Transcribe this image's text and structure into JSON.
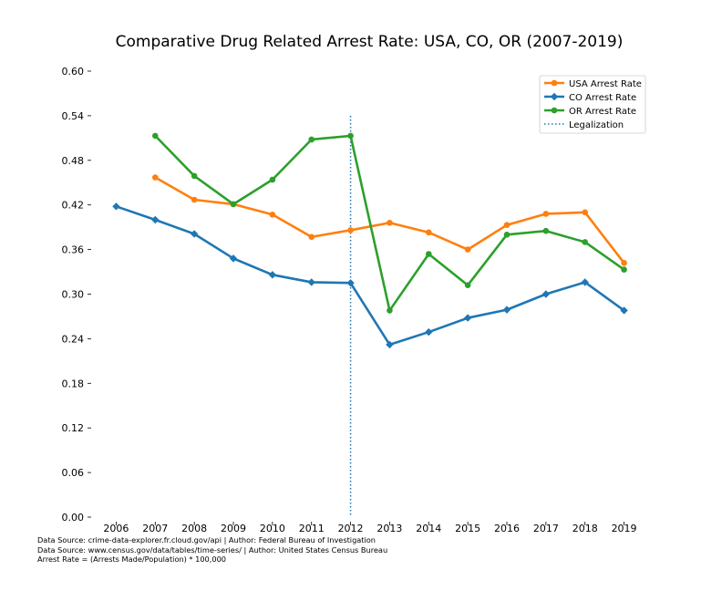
{
  "chart_data": {
    "type": "line",
    "title": "Comparative Drug Related Arrest Rate: USA, CO, OR (2007-2019)",
    "xlabel": "",
    "ylabel": "",
    "x": [
      2006,
      2007,
      2008,
      2009,
      2010,
      2011,
      2012,
      2013,
      2014,
      2015,
      2016,
      2017,
      2018,
      2019
    ],
    "x_ticks": [
      "2006",
      "2007",
      "2008",
      "2009",
      "2010",
      "2011",
      "2012",
      "2013",
      "2014",
      "2015",
      "2016",
      "2017",
      "2018",
      "2019"
    ],
    "xlim": [
      2005.5,
      2019.5
    ],
    "ylim": [
      0,
      0.6
    ],
    "y_ticks": [
      "0.00",
      "0.06",
      "0.12",
      "0.18",
      "0.24",
      "0.30",
      "0.36",
      "0.42",
      "0.48",
      "0.54",
      "0.60"
    ],
    "y_tick_values": [
      0,
      0.06,
      0.12,
      0.18,
      0.24,
      0.3,
      0.36,
      0.42,
      0.48,
      0.54,
      0.6
    ],
    "grid": false,
    "legend_position": "top-right",
    "series": [
      {
        "name": "USA Arrest Rate",
        "color": "#ff7f0e",
        "marker": "circle",
        "x": [
          2007,
          2008,
          2009,
          2010,
          2011,
          2012,
          2013,
          2014,
          2015,
          2016,
          2017,
          2018,
          2019
        ],
        "values": [
          0.457,
          0.427,
          0.421,
          0.407,
          0.377,
          0.386,
          0.396,
          0.383,
          0.36,
          0.393,
          0.408,
          0.41,
          0.342
        ]
      },
      {
        "name": "CO Arrest Rate",
        "color": "#1f77b4",
        "marker": "diamond",
        "x": [
          2006,
          2007,
          2008,
          2009,
          2010,
          2011,
          2012,
          2013,
          2014,
          2015,
          2016,
          2017,
          2018,
          2019
        ],
        "values": [
          0.418,
          0.4,
          0.381,
          0.348,
          0.326,
          0.316,
          0.315,
          0.232,
          0.249,
          0.268,
          0.279,
          0.3,
          0.316,
          0.278
        ]
      },
      {
        "name": "OR Arrest Rate",
        "color": "#2ca02c",
        "marker": "circle",
        "x": [
          2007,
          2008,
          2009,
          2010,
          2011,
          2012,
          2013,
          2014,
          2015,
          2016,
          2017,
          2018,
          2019
        ],
        "values": [
          0.513,
          0.459,
          0.421,
          0.454,
          0.508,
          0.513,
          0.278,
          0.354,
          0.312,
          0.38,
          0.385,
          0.37,
          0.333
        ]
      }
    ],
    "annotations": [
      {
        "type": "vline",
        "x": 2012,
        "name": "Legalization",
        "color": "#1f77b4",
        "style": "dotted"
      }
    ]
  },
  "footnotes": [
    "Data Source: crime-data-explorer.fr.cloud.gov/api | Author: Federal Bureau of Investigation",
    "Data Source: www.census.gov/data/tables/time-series/ | Author: United States Census Bureau",
    "Arrest Rate = (Arrests Made/Population) * 100,000"
  ]
}
